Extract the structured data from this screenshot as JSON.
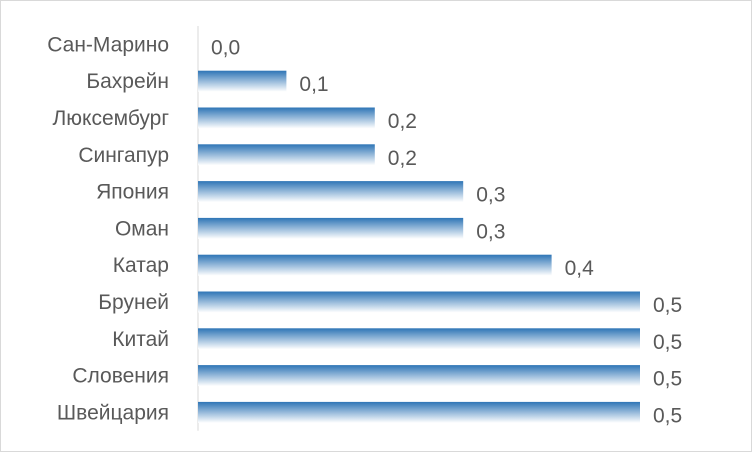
{
  "chart_data": {
    "type": "bar",
    "orientation": "horizontal",
    "categories": [
      "Сан-Марино",
      "Бахрейн",
      "Люксембург",
      "Сингапур",
      "Япония",
      "Оман",
      "Катар",
      "Бруней",
      "Китай",
      "Словения",
      "Швейцария"
    ],
    "values": [
      0.0,
      0.1,
      0.2,
      0.2,
      0.3,
      0.3,
      0.4,
      0.5,
      0.5,
      0.5,
      0.5
    ],
    "value_labels": [
      "0,0",
      "0,1",
      "0,2",
      "0,2",
      "0,3",
      "0,3",
      "0,4",
      "0,5",
      "0,5",
      "0,5",
      "0,5"
    ],
    "xlim": [
      0,
      0.5
    ],
    "grid": false,
    "legend": "none",
    "title": "",
    "xlabel": "",
    "ylabel": "",
    "bar_color_top": "#2e75b6",
    "bar_color_bottom": "#ffffff"
  }
}
